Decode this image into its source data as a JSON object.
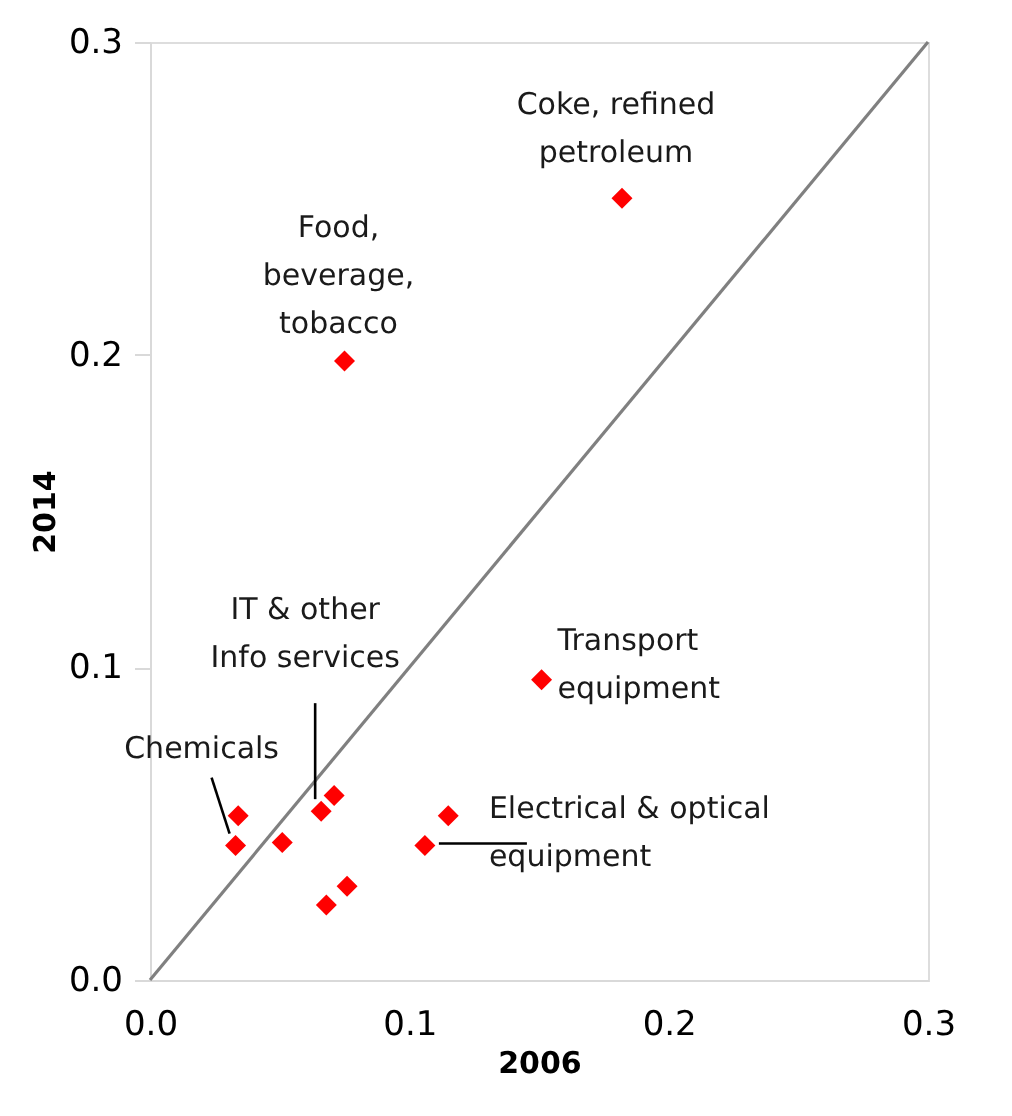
{
  "chart_data": {
    "type": "scatter",
    "xlabel": "2006",
    "ylabel": "2014",
    "xlim": [
      0,
      0.3
    ],
    "ylim": [
      0,
      0.3
    ],
    "xticks": [
      {
        "value": 0,
        "label": "0.0"
      },
      0.1,
      0.2,
      0.3
    ],
    "yticks": [
      {
        "value": 0,
        "label": "0.0"
      },
      0.1,
      0.2,
      0.3
    ],
    "grid": false,
    "series": [
      {
        "marker": "diamond",
        "color": "#ff0000",
        "x": [
          0.034,
          0.033,
          0.051,
          0.066,
          0.071,
          0.106,
          0.115,
          0.076,
          0.068,
          0.151,
          0.182,
          0.075
        ],
        "values": [
          0.0525,
          0.043,
          0.044,
          0.054,
          0.059,
          0.043,
          0.0525,
          0.03,
          0.024,
          0.096,
          0.25,
          0.198
        ]
      },
      {
        "type": "line",
        "color": "#808080",
        "x": [
          0,
          0.3
        ],
        "values": [
          0,
          0.3
        ]
      }
    ],
    "annotations": [
      {
        "text": "Coke, refined\npetroleum",
        "x": 0.182,
        "y": 0.25
      },
      {
        "text": "Food,\nbeverage,\ntobacco",
        "x": 0.075,
        "y": 0.198
      },
      {
        "text": "IT & other\nInfo services",
        "x": 0.066,
        "y": 0.054
      },
      {
        "text": "Transport\nequipment",
        "x": 0.151,
        "y": 0.096
      },
      {
        "text": "Chemicals",
        "x": 0.033,
        "y": 0.043
      },
      {
        "text": "Electrical & optical\nequipment",
        "x": 0.106,
        "y": 0.043
      }
    ]
  }
}
